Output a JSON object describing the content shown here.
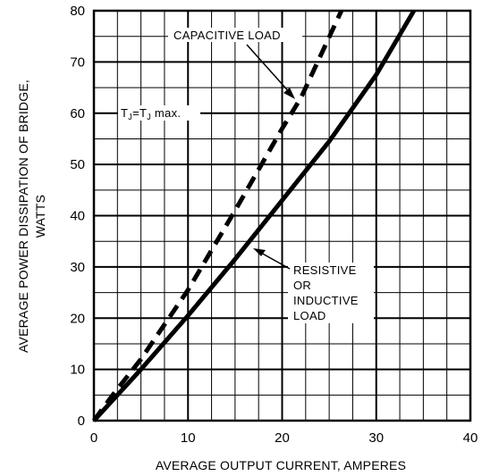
{
  "chart_data": {
    "type": "line",
    "xlabel": "AVERAGE OUTPUT CURRENT, AMPERES",
    "ylabel_lines": [
      "AVERAGE POWER DISSIPATION OF BRIDGE,",
      "WATTS"
    ],
    "xlim": [
      0,
      40
    ],
    "ylim": [
      0,
      80
    ],
    "x_ticks": [
      0,
      10,
      20,
      30,
      40
    ],
    "y_ticks": [
      0,
      10,
      20,
      30,
      40,
      50,
      60,
      70,
      80
    ],
    "grid": true,
    "series": [
      {
        "name": "CAPACITIVE LOAD",
        "style": "dashed",
        "x": [
          0,
          2,
          5,
          10,
          15,
          20,
          22,
          26.3
        ],
        "y": [
          0,
          5,
          12,
          25.5,
          41,
          57,
          63,
          80
        ]
      },
      {
        "name": "RESISTIVE OR INDUCTIVE LOAD",
        "style": "solid",
        "x": [
          0,
          2,
          5,
          10,
          15,
          20,
          25,
          30,
          34
        ],
        "y": [
          0,
          4,
          10,
          20.5,
          31.5,
          43,
          54.5,
          67.5,
          80
        ]
      }
    ],
    "annotations": {
      "capacitive": "CAPACITIVE LOAD",
      "tj_prefix": "T",
      "tj_sub1": "J",
      "tj_mid": "=T",
      "tj_sub2": "J",
      "tj_suffix": " max.",
      "resistive_lines": [
        "RESISTIVE",
        "OR",
        "INDUCTIVE",
        "LOAD"
      ]
    }
  }
}
